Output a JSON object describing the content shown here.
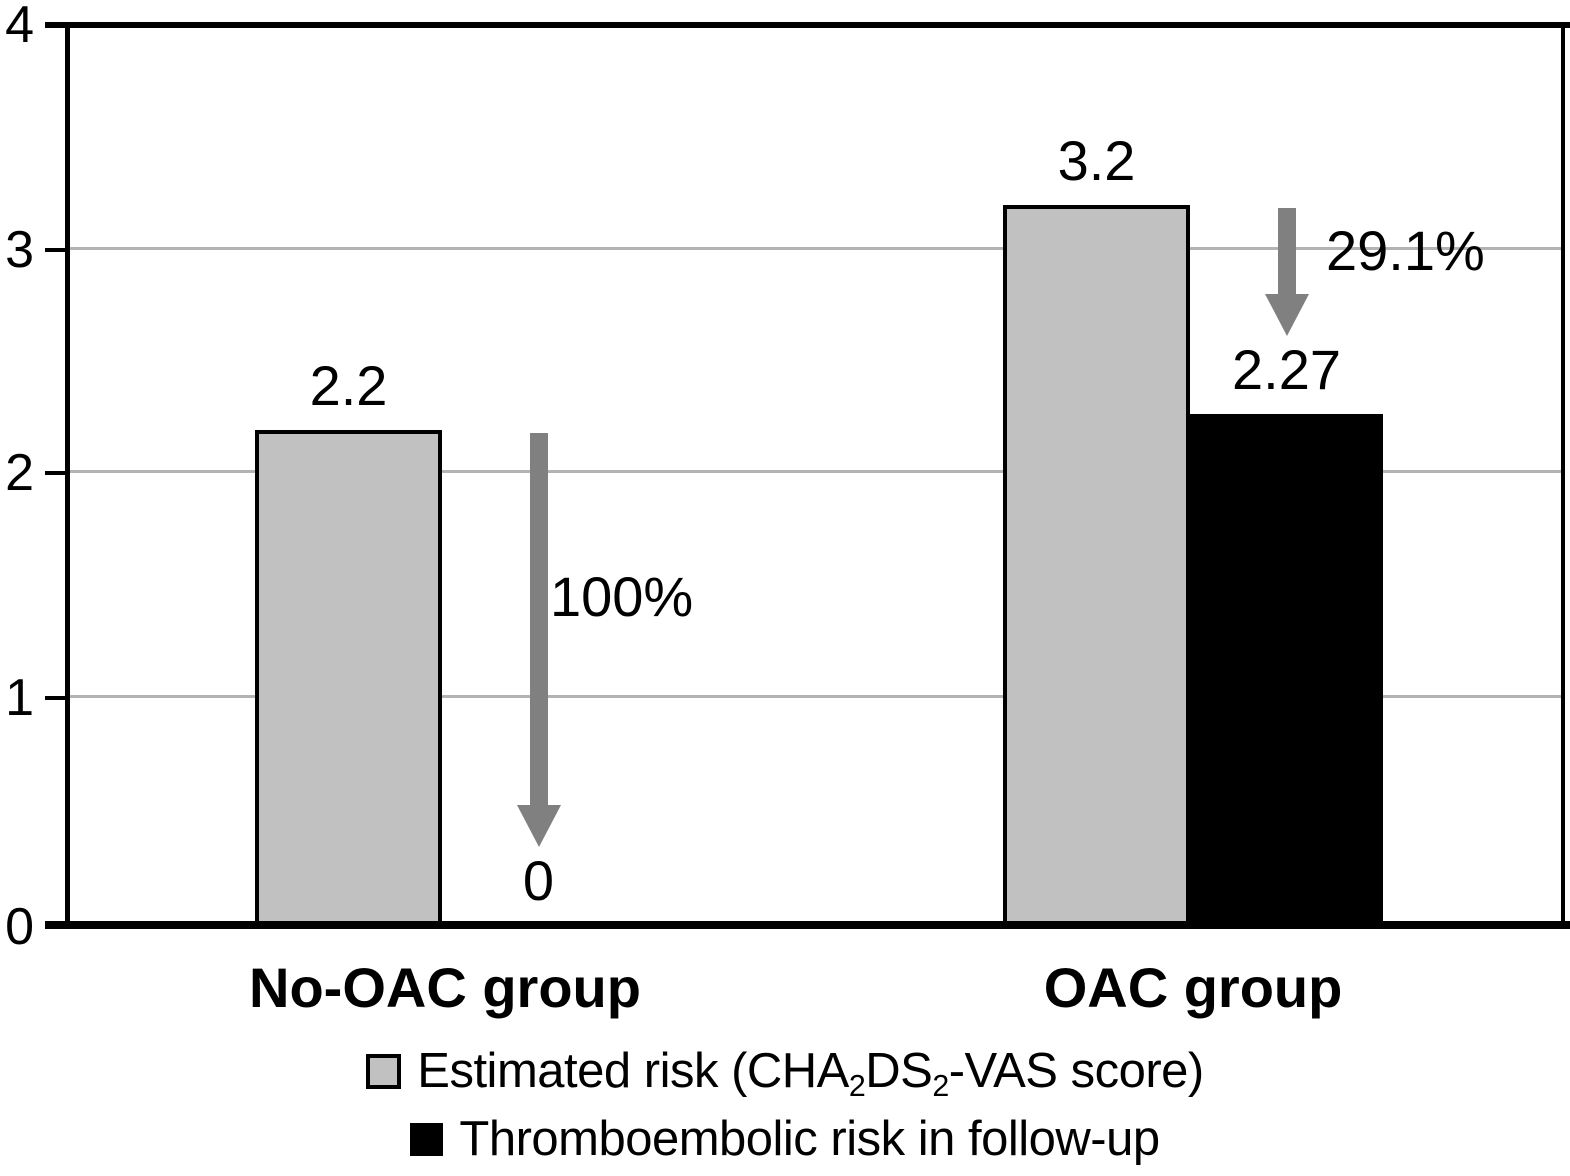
{
  "chart_data": {
    "type": "bar",
    "categories": [
      "No-OAC group",
      "OAC group"
    ],
    "series": [
      {
        "name": "Estimated risk (CHA2DS2-VAS score)",
        "color": "#c1c1c1",
        "values": [
          2.2,
          3.2
        ],
        "value_labels": [
          "2.2",
          "3.2"
        ]
      },
      {
        "name": "Thromboembolic risk in follow-up",
        "color": "#000000",
        "values": [
          0,
          2.27
        ],
        "value_labels": [
          "0",
          "2.27"
        ]
      }
    ],
    "annotations": [
      {
        "text": "100%",
        "category": "No-OAC group",
        "type": "decrease-arrow"
      },
      {
        "text": "29.1%",
        "category": "OAC group",
        "type": "decrease-arrow"
      }
    ],
    "title": "",
    "xlabel": "",
    "ylabel": "",
    "ylim": [
      0,
      4
    ],
    "yticks": [
      0,
      1,
      2,
      3,
      4
    ],
    "grid": true,
    "grid_color": "#b3b3b3",
    "arrow_color": "#808080",
    "legend_position": "bottom"
  },
  "yaxis": {
    "tick_labels": [
      "4",
      "3",
      "2",
      "1",
      "0"
    ]
  },
  "legend": {
    "items": [
      {
        "swatch_color": "#c1c1c1",
        "parts": [
          "Estimated risk (CHA",
          "2",
          "DS",
          "2",
          "-VAS score)"
        ]
      },
      {
        "swatch_color": "#000000",
        "parts": [
          "Thromboembolic risk in follow-up"
        ]
      }
    ]
  }
}
